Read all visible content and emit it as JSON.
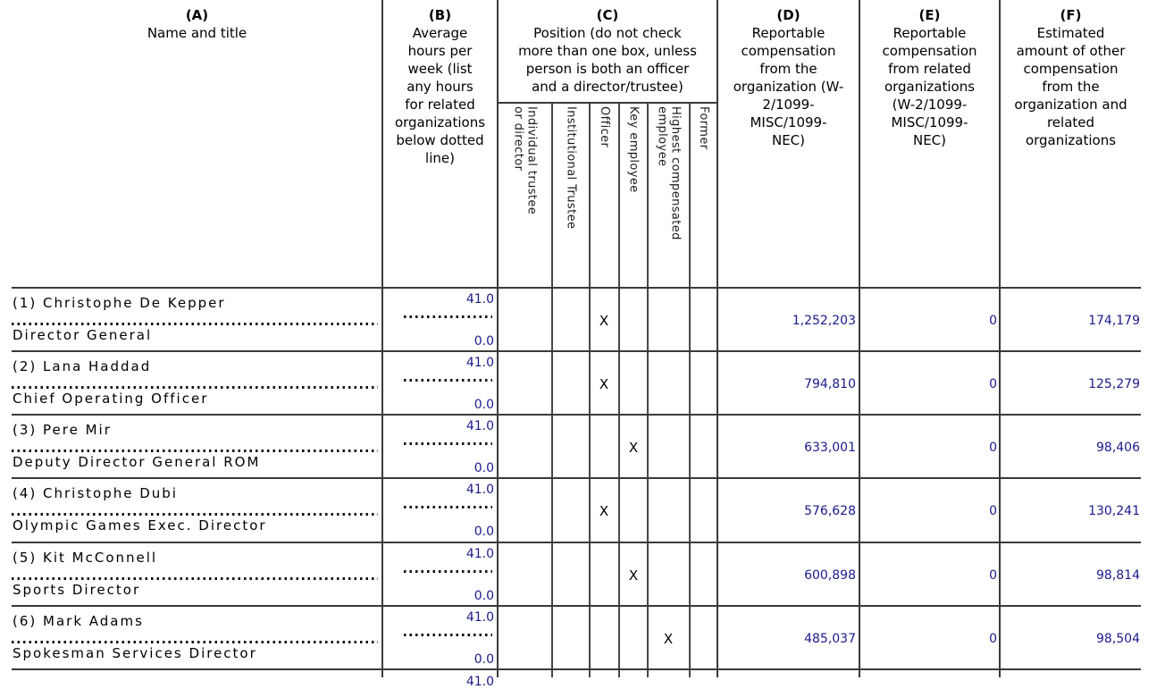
{
  "table": {
    "columns": {
      "a": {
        "letter": "(A)",
        "label": "Name and title"
      },
      "b": {
        "letter": "(B)",
        "label": "Average\nhours per\nweek (list\nany hours\nfor related\norganizations\nbelow dotted\nline)"
      },
      "c": {
        "letter": "(C)",
        "label": "Position (do not check\nmore than one box, unless\nperson is both an officer\nand a director/trustee)",
        "subcolumns": [
          "Individual trustee\nor director",
          "Institutional Trustee",
          "Officer",
          "Key employee",
          "Highest compensated\nemployee",
          "Former"
        ]
      },
      "d": {
        "letter": "(D)",
        "label": "Reportable\ncompensation\nfrom the\norganization (W-\n2/1099-\nMISC/1099-\nNEC)"
      },
      "e": {
        "letter": "(E)",
        "label": "Reportable\ncompensation\nfrom related\norganizations\n(W-2/1099-\nMISC/1099-\nNEC)"
      },
      "f": {
        "letter": "(F)",
        "label": "Estimated\namount of other\ncompensation\nfrom the\norganization and\nrelated\norganizations"
      }
    },
    "rows": [
      {
        "name": "(1) Christophe De Kepper",
        "title": "Director General",
        "hours_org": "41.0",
        "hours_related": "0.0",
        "position": "Officer",
        "position_index": 2,
        "check_mark": "X",
        "comp_org": "1,252,203",
        "comp_related": "0",
        "other_comp": "174,179"
      },
      {
        "name": "(2) Lana Haddad",
        "title": "Chief Operating Officer",
        "hours_org": "41.0",
        "hours_related": "0.0",
        "position": "Officer",
        "position_index": 2,
        "check_mark": "X",
        "comp_org": "794,810",
        "comp_related": "0",
        "other_comp": "125,279"
      },
      {
        "name": "(3) Pere Mir",
        "title": "Deputy Director General ROM",
        "hours_org": "41.0",
        "hours_related": "0.0",
        "position": "Key employee",
        "position_index": 3,
        "check_mark": "X",
        "comp_org": "633,001",
        "comp_related": "0",
        "other_comp": "98,406"
      },
      {
        "name": "(4) Christophe Dubi",
        "title": "Olympic Games Exec. Director",
        "hours_org": "41.0",
        "hours_related": "0.0",
        "position": "Officer",
        "position_index": 2,
        "check_mark": "X",
        "comp_org": "576,628",
        "comp_related": "0",
        "other_comp": "130,241"
      },
      {
        "name": "(5) Kit McConnell",
        "title": "Sports Director",
        "hours_org": "41.0",
        "hours_related": "0.0",
        "position": "Key employee",
        "position_index": 3,
        "check_mark": "X",
        "comp_org": "600,898",
        "comp_related": "0",
        "other_comp": "98,814"
      },
      {
        "name": "(6) Mark Adams",
        "title": "Spokesman Services Director",
        "hours_org": "41.0",
        "hours_related": "0.0",
        "position": "Highest compensated employee",
        "position_index": 4,
        "check_mark": "X",
        "comp_org": "485,037",
        "comp_related": "0",
        "other_comp": "98,504"
      }
    ],
    "partial_row": {
      "hours_org": "41.0"
    }
  },
  "colors": {
    "value_text": "#1a1a8c",
    "body_text": "#000000",
    "grid_line": "#3a3a3a",
    "background": "#ffffff"
  }
}
